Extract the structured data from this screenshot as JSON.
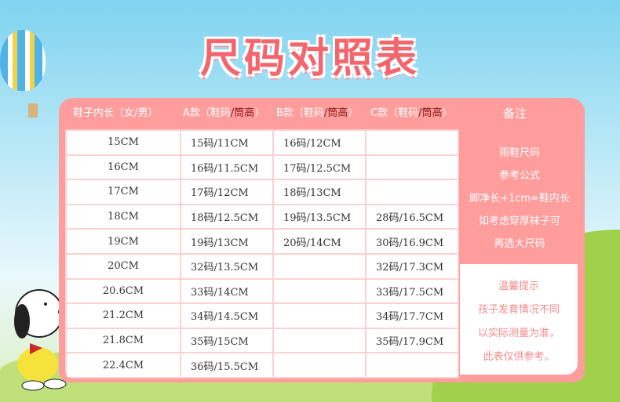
{
  "title": "尺码对照表",
  "headers": [
    {
      "main": "鞋子内长（女/男）"
    },
    {
      "main": "A款（鞋码",
      "dark": "/筒高",
      "end": "）"
    },
    {
      "main": "B款（鞋码",
      "dark": "/筒高",
      "end": "）"
    },
    {
      "main": "C款（鞋码",
      "dark": "/筒高",
      "end": "）"
    },
    {
      "main": "备注"
    }
  ],
  "rows": [
    [
      "15CM",
      "15码/11CM",
      "16码/12CM",
      ""
    ],
    [
      "16CM",
      "16码/11.5CM",
      "17码/12.5CM",
      ""
    ],
    [
      "17CM",
      "17码/12CM",
      "18码/13CM",
      ""
    ],
    [
      "18CM",
      "18码/12.5CM",
      "19码/13.5CM",
      "28码/16.5CM"
    ],
    [
      "19CM",
      "19码/13CM",
      "20码/14CM",
      "30码/16.9CM"
    ],
    [
      "20CM",
      "32码/13.5CM",
      "",
      "32码/17.3CM"
    ],
    [
      "20.6CM",
      "33码/14CM",
      "",
      "33码/17.5CM"
    ],
    [
      "21.2CM",
      "34码/14.5CM",
      "",
      "34码/17.7CM"
    ],
    [
      "21.8CM",
      "35码/15CM",
      "",
      "35码/17.9CM"
    ],
    [
      "22.4CM",
      "36码/15.5CM",
      "",
      ""
    ]
  ],
  "note": [
    "雨鞋尺码",
    "参考公式",
    "脚净长+1cm=鞋内长",
    "如考虑穿厚袜子可",
    "再选大尺码"
  ],
  "tips": [
    "温馨提示",
    "孩子发育情况不同",
    "以实际测量为准，",
    "此表仅供参考。"
  ],
  "colors": {
    "panel": "#ff9c9c",
    "title": "#f4666e",
    "tips": "#f58a8a"
  }
}
